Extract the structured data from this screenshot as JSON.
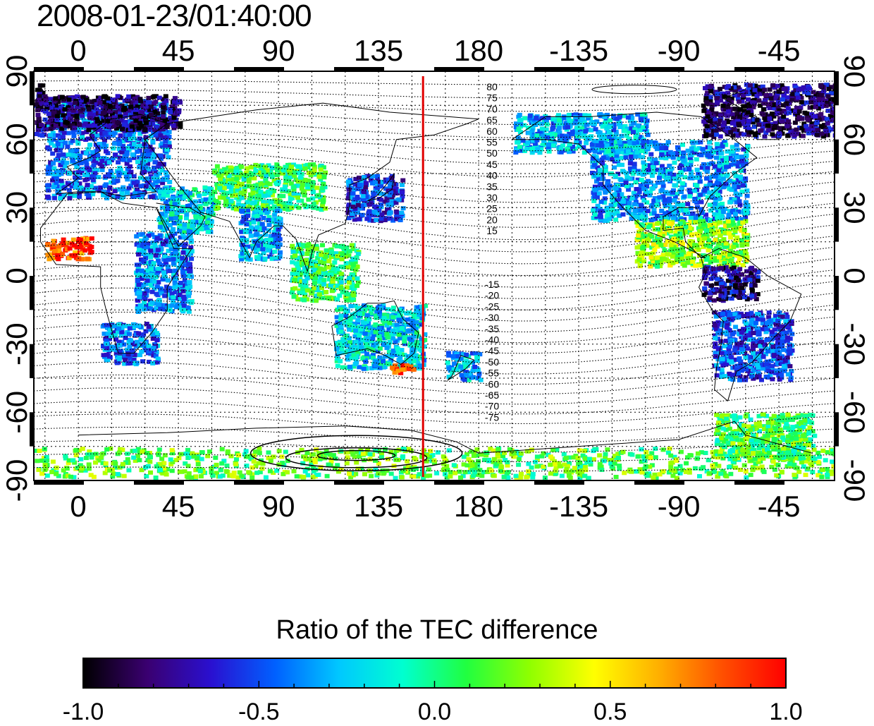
{
  "map": {
    "timestamp": "2008-01-23/01:40:00",
    "projection": "equirectangular",
    "central_longitude": 160,
    "lon_tick_labels": [
      "0",
      "45",
      "90",
      "135",
      "180",
      "-135",
      "-90",
      "-45"
    ],
    "lon_tick_values": [
      0,
      45,
      90,
      135,
      180,
      225,
      270,
      315
    ],
    "lat_tick_labels_left": [
      "90",
      "60",
      "30",
      "0",
      "-30",
      "-60",
      "-90"
    ],
    "lat_tick_labels_right": [
      "90",
      "60",
      "30",
      "0",
      "-30",
      "-60",
      "-90"
    ],
    "lat_tick_values": [
      90,
      60,
      30,
      0,
      -30,
      -60,
      -90
    ],
    "grid": true,
    "red_meridian_longitude": 155,
    "contour_labels_north": [
      "80",
      "75",
      "70",
      "65",
      "60",
      "55",
      "50",
      "45",
      "40",
      "35",
      "30",
      "25",
      "20",
      "15"
    ],
    "contour_labels_south": [
      "-15",
      "-20",
      "-25",
      "-30",
      "-35",
      "-40",
      "-45",
      "-50",
      "-55",
      "-60",
      "-65",
      "-70",
      "-75"
    ],
    "colors": {
      "frame": "#000000",
      "grid": "#000000",
      "meridian_line": "#e00000",
      "coastline": "#000000",
      "contour": "#000000"
    }
  },
  "colorbar": {
    "title": "Ratio of the TEC difference",
    "tick_labels": [
      "-1.0",
      "-0.5",
      "0.0",
      "0.5",
      "1.0"
    ],
    "tick_values": [
      -1.0,
      -0.5,
      0.0,
      0.5,
      1.0
    ],
    "min": -1.0,
    "max": 1.0,
    "colormap": [
      "#000000",
      "#3a0070",
      "#2a10d0",
      "#0060ff",
      "#00c8ff",
      "#00ffd0",
      "#20ff40",
      "#90ff00",
      "#ffff00",
      "#ffb000",
      "#ff5000",
      "#ff0000"
    ]
  },
  "data_patches": [
    {
      "region": "europe",
      "lon": [
        -15,
        40
      ],
      "lat": [
        35,
        78
      ],
      "value": -0.45
    },
    {
      "region": "scandinavia-arctic",
      "lon": [
        -15,
        45
      ],
      "lat": [
        65,
        80
      ],
      "value": -0.85
    },
    {
      "region": "west-africa",
      "lon": [
        -15,
        5
      ],
      "lat": [
        8,
        18
      ],
      "value": 0.85
    },
    {
      "region": "east-africa",
      "lon": [
        25,
        50
      ],
      "lat": [
        -15,
        20
      ],
      "value": -0.4
    },
    {
      "region": "southern-africa",
      "lon": [
        10,
        35
      ],
      "lat": [
        -38,
        -20
      ],
      "value": -0.45
    },
    {
      "region": "middle-east",
      "lon": [
        35,
        60
      ],
      "lat": [
        20,
        40
      ],
      "value": -0.2
    },
    {
      "region": "central-asia",
      "lon": [
        60,
        110
      ],
      "lat": [
        30,
        50
      ],
      "value": 0.05
    },
    {
      "region": "india",
      "lon": [
        72,
        90
      ],
      "lat": [
        8,
        30
      ],
      "value": -0.3
    },
    {
      "region": "japan-east-asia",
      "lon": [
        120,
        145
      ],
      "lat": [
        25,
        45
      ],
      "value": -0.55
    },
    {
      "region": "southeast-asia",
      "lon": [
        95,
        125
      ],
      "lat": [
        -10,
        15
      ],
      "value": 0.05
    },
    {
      "region": "australia",
      "lon": [
        115,
        155
      ],
      "lat": [
        -40,
        -12
      ],
      "value": -0.2
    },
    {
      "region": "tasmania-red",
      "lon": [
        140,
        150
      ],
      "lat": [
        -42,
        -38
      ],
      "value": 0.9
    },
    {
      "region": "new-zealand",
      "lon": [
        165,
        180
      ],
      "lat": [
        -45,
        -33
      ],
      "value": -0.3
    },
    {
      "region": "north-america",
      "lon": [
        -130,
        -60
      ],
      "lat": [
        25,
        60
      ],
      "value": -0.35
    },
    {
      "region": "alaska-canada",
      "lon": [
        -165,
        -105
      ],
      "lat": [
        55,
        72
      ],
      "value": -0.3
    },
    {
      "region": "greenland-arctic",
      "lon": [
        -80,
        -15
      ],
      "lat": [
        62,
        85
      ],
      "value": -0.8
    },
    {
      "region": "central-america",
      "lon": [
        -110,
        -60
      ],
      "lat": [
        5,
        25
      ],
      "value": 0.25
    },
    {
      "region": "south-america-north",
      "lon": [
        -80,
        -55
      ],
      "lat": [
        -10,
        5
      ],
      "value": -0.75
    },
    {
      "region": "south-america-south",
      "lon": [
        -75,
        -40
      ],
      "lat": [
        -45,
        -15
      ],
      "value": -0.5
    },
    {
      "region": "antarctica-ring",
      "lon": [
        -180,
        180
      ],
      "lat": [
        -88,
        -75
      ],
      "value": 0.15
    },
    {
      "region": "antarctic-peninsula",
      "lon": [
        -75,
        -30
      ],
      "lat": [
        -80,
        -60
      ],
      "value": 0.1
    }
  ]
}
